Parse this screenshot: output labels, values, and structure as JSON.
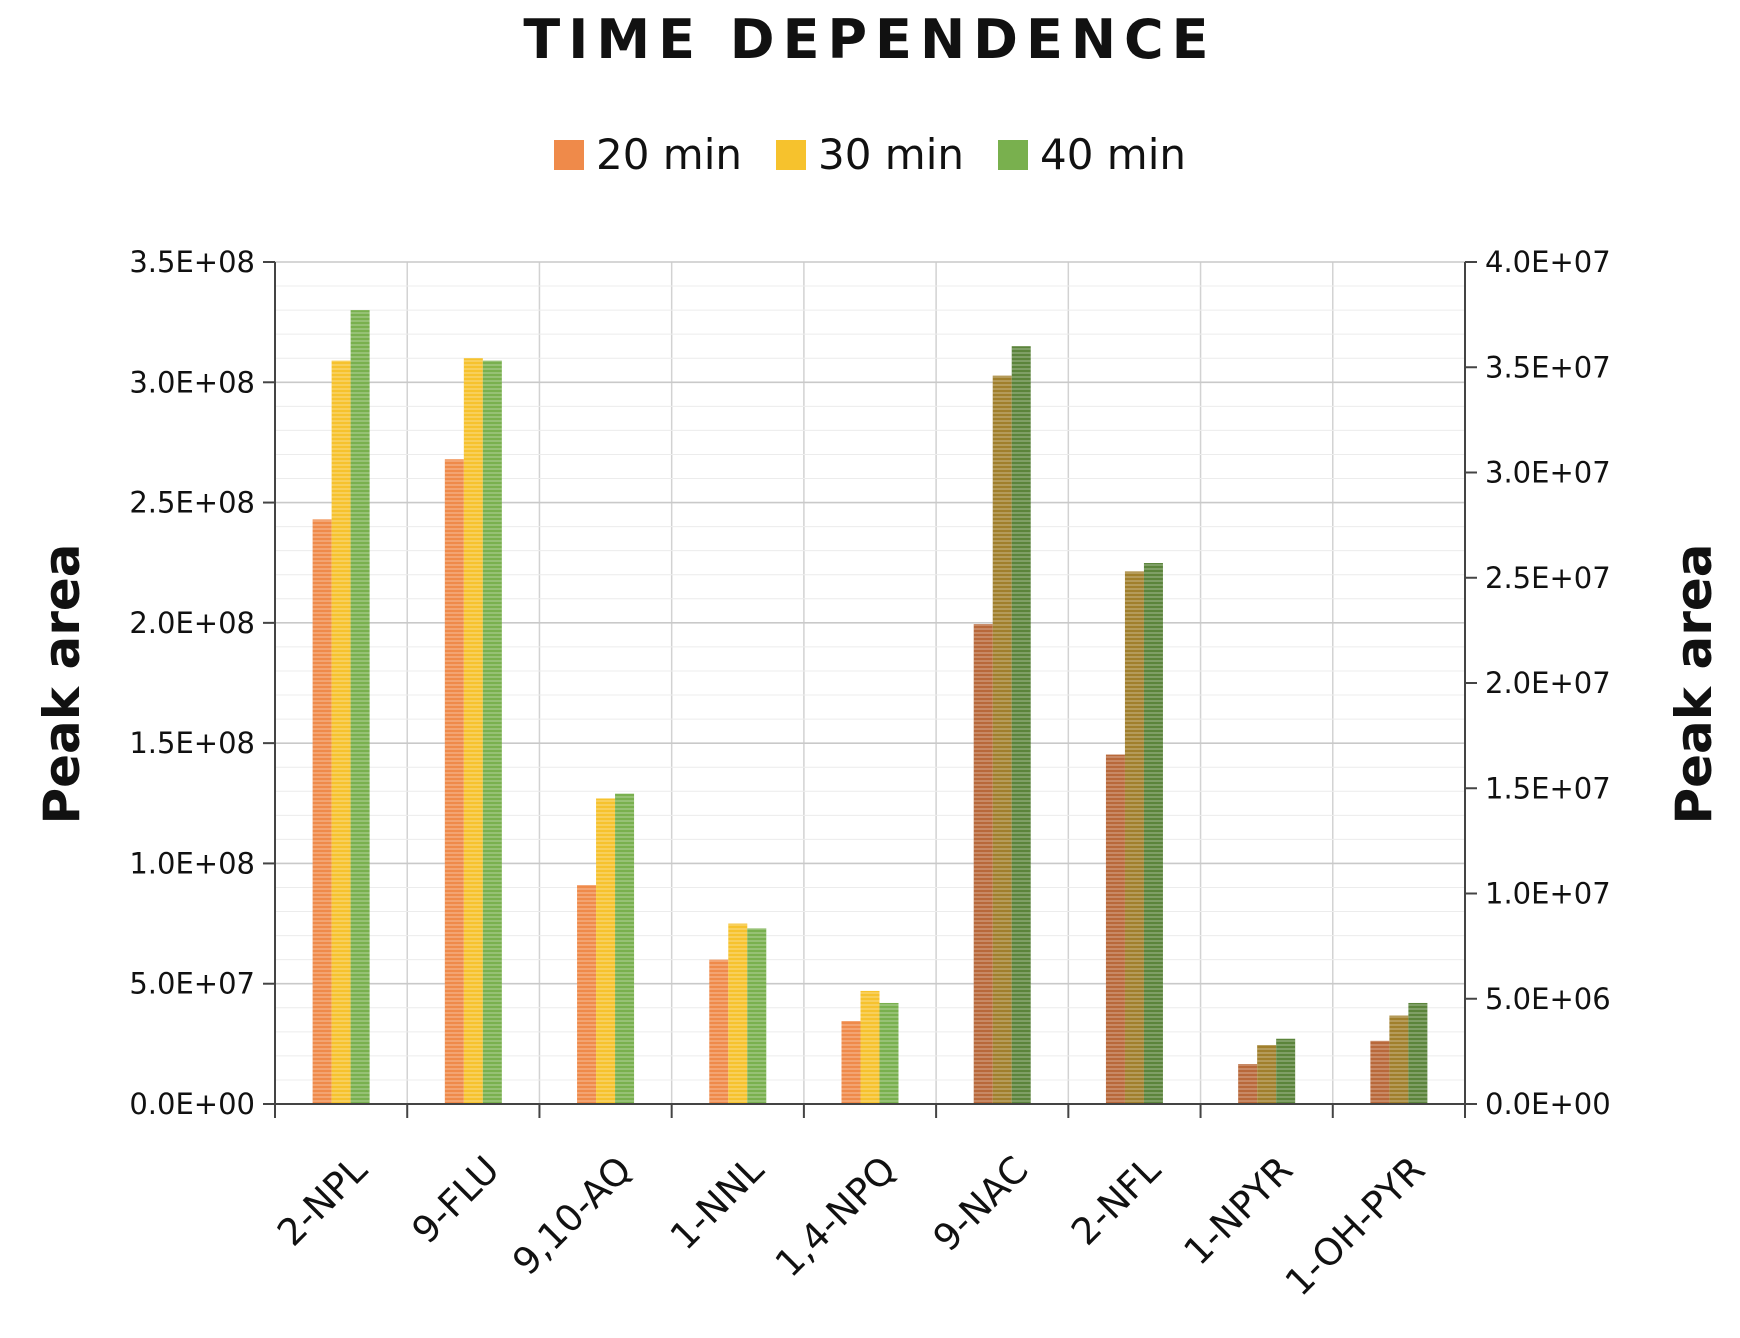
{
  "chart_data": {
    "type": "bar",
    "title": "TIME DEPENDENCE",
    "ylabel": "Peak area",
    "y2label": "Peak area",
    "categories": [
      "2-NPL",
      "9-FLU",
      "9,10-AQ",
      "1-NNL",
      "1,4-NPQ",
      "9-NAC",
      "2-NFL",
      "1-NPYR",
      "1-OH-PYR"
    ],
    "primary_axis_categories": [
      "2-NPL",
      "9-FLU",
      "9,10-AQ",
      "1-NNL",
      "1,4-NPQ"
    ],
    "secondary_axis_categories": [
      "9-NAC",
      "2-NFL",
      "1-NPYR",
      "1-OH-PYR"
    ],
    "series": [
      {
        "name": "20 min",
        "color": "#ef8a4a",
        "secondary_color": "#b8683a",
        "values": [
          243000000,
          268000000,
          91000000,
          60000000,
          34500000,
          22800000,
          16600000,
          1900000,
          3000000
        ]
      },
      {
        "name": "30 min",
        "color": "#f6c22d",
        "secondary_color": "#a07f2c",
        "values": [
          309000000,
          310000000,
          127000000,
          75000000,
          47000000,
          34600000,
          25300000,
          2800000,
          4200000
        ]
      },
      {
        "name": "40 min",
        "color": "#79b04e",
        "secondary_color": "#5b843b",
        "values": [
          330000000,
          309000000,
          129000000,
          73000000,
          42000000,
          36000000,
          25700000,
          3100000,
          4800000
        ]
      }
    ],
    "ylim": [
      0,
      350000000
    ],
    "y2lim": [
      0,
      40000000
    ],
    "yticks": [
      "0.0E+00",
      "5.0E+07",
      "1.0E+08",
      "1.5E+08",
      "2.0E+08",
      "2.5E+08",
      "3.0E+08",
      "3.5E+08"
    ],
    "y2ticks": [
      "0.0E+00",
      "5.0E+06",
      "1.0E+07",
      "1.5E+07",
      "2.0E+07",
      "2.5E+07",
      "3.0E+07",
      "3.5E+07",
      "4.0E+07"
    ],
    "grid": true,
    "legend_position": "top"
  }
}
